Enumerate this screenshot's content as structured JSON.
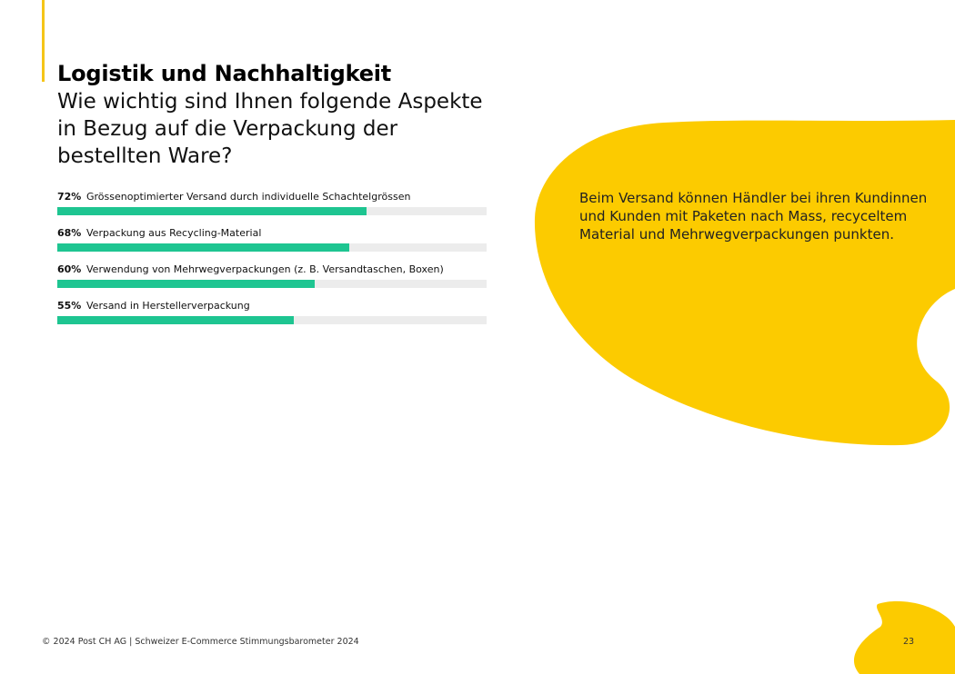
{
  "header": {
    "title": "Logistik und Nachhaltigkeit",
    "question": "Wie wichtig sind Ihnen folgende Aspekte in Bezug auf die Verpackung der bestellten Ware?"
  },
  "chart_data": {
    "type": "bar",
    "orientation": "horizontal",
    "categories": [
      "Grössenoptimierter Versand durch individuelle Schachtelgrössen",
      "Verpackung aus Recycling-Material",
      "Verwendung von Mehrwegverpackungen (z. B. Versandtaschen, Boxen)",
      "Versand in Herstellerverpackung"
    ],
    "values": [
      72,
      68,
      60,
      55
    ],
    "value_labels": [
      "72%",
      "68%",
      "60%",
      "55%"
    ],
    "xlim": [
      0,
      100
    ],
    "grid": false,
    "colors": {
      "fill": "#1ec591",
      "track": "#ececec"
    }
  },
  "callout": {
    "text": "Beim Versand können Händler bei ihren Kundinnen und Kunden mit Paketen nach Mass, recyceltem Material und Mehrwegverpackungen punkten."
  },
  "footer": {
    "copyright": "© 2024 Post CH AG | Schweizer E-Commerce Stimmungsbarometer 2024",
    "page_number": "23"
  },
  "colors": {
    "accent": "#f5c518",
    "blob": "#fccb00"
  }
}
